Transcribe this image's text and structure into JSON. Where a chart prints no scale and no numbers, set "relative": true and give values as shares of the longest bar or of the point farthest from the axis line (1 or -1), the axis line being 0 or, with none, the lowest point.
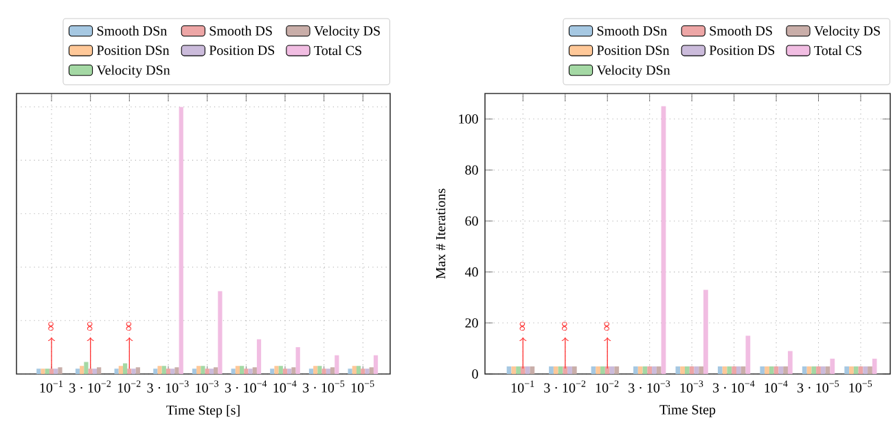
{
  "chart_data": [
    {
      "type": "bar",
      "relative": true,
      "xlabel": "Time Step [s]",
      "tick_labels": "x",
      "grid": true,
      "legend": "top",
      "categories": [
        "10$^{−1}$",
        "3 · 10$^{−2}$",
        "10$^{−2}$",
        "3 · 10$^{−3}$",
        "10$^{−3}$",
        "3 · 10$^{−4}$",
        "10$^{−4}$",
        "3 · 10$^{−5}$",
        "10$^{−5}$"
      ],
      "series": [
        {
          "name": "Smooth DSn",
          "color": "#a6c8e2",
          "values": [
            0.02,
            0.02,
            0.02,
            0.02,
            0.02,
            0.02,
            0.02,
            0.02,
            0.02
          ]
        },
        {
          "name": "Position DSn",
          "color": "#ffc898",
          "values": [
            0.02,
            0.03,
            0.03,
            0.03,
            0.03,
            0.03,
            0.03,
            0.03,
            0.03
          ]
        },
        {
          "name": "Velocity DSn",
          "color": "#a4d8a4",
          "values": [
            0.02,
            0.045,
            0.04,
            0.03,
            0.03,
            0.03,
            0.03,
            0.03,
            0.03
          ]
        },
        {
          "name": "Smooth DS",
          "color": "#eda6a6",
          "values": [
            0.02,
            0.02,
            0.02,
            0.02,
            0.02,
            0.02,
            0.02,
            0.02,
            0.02
          ]
        },
        {
          "name": "Position DS",
          "color": "#cbbbdb",
          "values": [
            0.02,
            0.02,
            0.02,
            0.02,
            0.02,
            0.02,
            0.02,
            0.02,
            0.02
          ]
        },
        {
          "name": "Velocity DS",
          "color": "#c9aea9",
          "values": [
            0.025,
            0.025,
            0.025,
            0.025,
            0.025,
            0.025,
            0.025,
            0.025,
            0.025
          ]
        },
        {
          "name": "Total CS",
          "color": "#f1bde2",
          "values": [
            null,
            null,
            null,
            1,
            0.31,
            0.13,
            0.1,
            0.07,
            0.07
          ]
        }
      ],
      "annotations": [
        {
          "text": "∞",
          "x": "10$^{−1}$"
        },
        {
          "text": "∞",
          "x": "3 · 10$^{−2}$"
        },
        {
          "text": "∞",
          "x": "10$^{−2}$"
        }
      ]
    },
    {
      "type": "bar",
      "xlabel": "Time Step",
      "ylabel": "Max # Iterations",
      "grid": true,
      "legend": "top",
      "ylim": [
        0,
        110
      ],
      "yticks": [
        0,
        20,
        40,
        60,
        80,
        100
      ],
      "categories": [
        "10$^{−1}$",
        "3 · 10$^{−2}$",
        "10$^{−2}$",
        "3 · 10$^{−3}$",
        "10$^{−3}$",
        "3 · 10$^{−4}$",
        "10$^{−4}$",
        "3 · 10$^{−5}$",
        "10$^{−5}$"
      ],
      "series": [
        {
          "name": "Smooth DSn",
          "color": "#a6c8e2",
          "values": [
            3,
            3,
            3,
            3,
            3,
            3,
            3,
            3,
            3
          ]
        },
        {
          "name": "Position DSn",
          "color": "#ffc898",
          "values": [
            3,
            3,
            3,
            3,
            3,
            3,
            3,
            3,
            3
          ]
        },
        {
          "name": "Velocity DSn",
          "color": "#a4d8a4",
          "values": [
            3,
            3,
            3,
            3,
            3,
            3,
            3,
            3,
            3
          ]
        },
        {
          "name": "Smooth DS",
          "color": "#eda6a6",
          "values": [
            3,
            3,
            3,
            3,
            3,
            3,
            3,
            3,
            3
          ]
        },
        {
          "name": "Position DS",
          "color": "#cbbbdb",
          "values": [
            3,
            3,
            3,
            3,
            3,
            3,
            3,
            3,
            3
          ]
        },
        {
          "name": "Velocity DS",
          "color": "#c9aea9",
          "values": [
            3,
            3,
            3,
            3,
            3,
            3,
            3,
            3,
            3
          ]
        },
        {
          "name": "Total CS",
          "color": "#f1bde2",
          "values": [
            null,
            null,
            null,
            105,
            33,
            15,
            9,
            6,
            6
          ]
        }
      ],
      "annotations": [
        {
          "text": "∞",
          "x": "10$^{−1}$"
        },
        {
          "text": "∞",
          "x": "3 · 10$^{−2}$"
        },
        {
          "text": "∞",
          "x": "10$^{−2}$"
        }
      ]
    }
  ]
}
